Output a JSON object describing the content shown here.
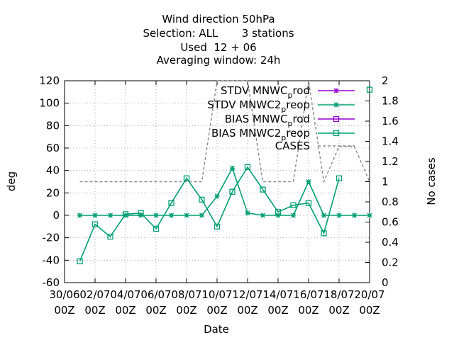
{
  "chart_data": {
    "type": "line",
    "title_lines": [
      "Wind direction 50hPa",
      "Selection: ALL       3 stations",
      "Used  12 + 06",
      "Averaging window: 24h"
    ],
    "xlabel": "Date",
    "ylabel": "deg",
    "y2label": "No cases",
    "ylim": [
      -60,
      120
    ],
    "y2lim": [
      0,
      2
    ],
    "yticks": [
      -60,
      -40,
      -20,
      0,
      20,
      40,
      60,
      80,
      100,
      120
    ],
    "y2ticks": [
      0,
      0.2,
      0.4,
      0.6,
      0.8,
      1,
      1.2,
      1.4,
      1.6,
      1.8,
      2
    ],
    "xlim_hours": [
      0,
      480
    ],
    "xticks": [
      {
        "hours": 0,
        "line1": "30/06",
        "line2": "00Z"
      },
      {
        "hours": 48,
        "line1": "02/07",
        "line2": "00Z"
      },
      {
        "hours": 96,
        "line1": "04/07",
        "line2": "00Z"
      },
      {
        "hours": 144,
        "line1": "06/07",
        "line2": "00Z"
      },
      {
        "hours": 192,
        "line1": "08/07",
        "line2": "00Z"
      },
      {
        "hours": 240,
        "line1": "10/07",
        "line2": "00Z"
      },
      {
        "hours": 288,
        "line1": "12/07",
        "line2": "00Z"
      },
      {
        "hours": 336,
        "line1": "14/07",
        "line2": "00Z"
      },
      {
        "hours": 384,
        "line1": "16/07",
        "line2": "00Z"
      },
      {
        "hours": 432,
        "line1": "18/07",
        "line2": "00Z"
      },
      {
        "hours": 480,
        "line1": "20/07",
        "line2": "00Z"
      }
    ],
    "grid": true,
    "legend_position": "top-right",
    "x_hours": [
      24,
      48,
      72,
      96,
      120,
      144,
      168,
      192,
      216,
      240,
      264,
      288,
      312,
      336,
      360,
      384,
      408,
      432,
      456,
      480
    ],
    "series": [
      {
        "name": "STDV MNWC_prod",
        "label_main": "STDV MNWC",
        "label_sub": "p",
        "label_rest": "rod",
        "color": "#9400d3",
        "marker": "star",
        "axis": "y",
        "values": [
          null,
          null,
          null,
          null,
          null,
          null,
          null,
          null,
          null,
          null,
          null,
          null,
          null,
          null,
          null,
          null,
          null,
          null,
          null,
          null
        ]
      },
      {
        "name": "STDV MNWC2_preop",
        "label_main": "STDV MNWC2",
        "label_sub": "p",
        "label_rest": "reop",
        "color": "#009e73",
        "marker": "star",
        "axis": "y",
        "values": [
          0,
          0,
          0,
          0,
          0,
          0,
          0,
          0,
          0,
          17,
          42,
          2,
          0,
          0,
          0,
          30,
          0,
          0,
          0,
          0
        ]
      },
      {
        "name": "BIAS MNWC_prod",
        "label_main": "BIAS MNWC",
        "label_sub": "p",
        "label_rest": "rod",
        "color": "#9400d3",
        "marker": "square",
        "axis": "y",
        "values": [
          null,
          null,
          null,
          null,
          null,
          null,
          null,
          null,
          null,
          null,
          null,
          null,
          null,
          null,
          null,
          null,
          null,
          null,
          null,
          null
        ]
      },
      {
        "name": "BIAS MNWC2_preop",
        "label_main": "BIAS MNWC2",
        "label_sub": "p",
        "label_rest": "reop",
        "color": "#009e73",
        "marker": "square",
        "axis": "y",
        "values": [
          -41,
          -8,
          -19,
          1,
          2,
          -12,
          11,
          33,
          14,
          -10,
          21,
          43,
          23,
          3,
          9,
          11,
          -16,
          33,
          null,
          112
        ]
      },
      {
        "name": "CASES",
        "label_main": "CASES",
        "label_sub": "",
        "label_rest": "",
        "color": "#888888",
        "marker": "none",
        "axis": "y2",
        "dashed": true,
        "values": [
          1,
          1,
          1,
          1,
          1,
          1,
          1,
          1,
          1,
          2,
          2,
          2,
          1,
          1,
          1,
          2,
          1,
          1.35,
          1.35,
          1
        ]
      }
    ]
  }
}
